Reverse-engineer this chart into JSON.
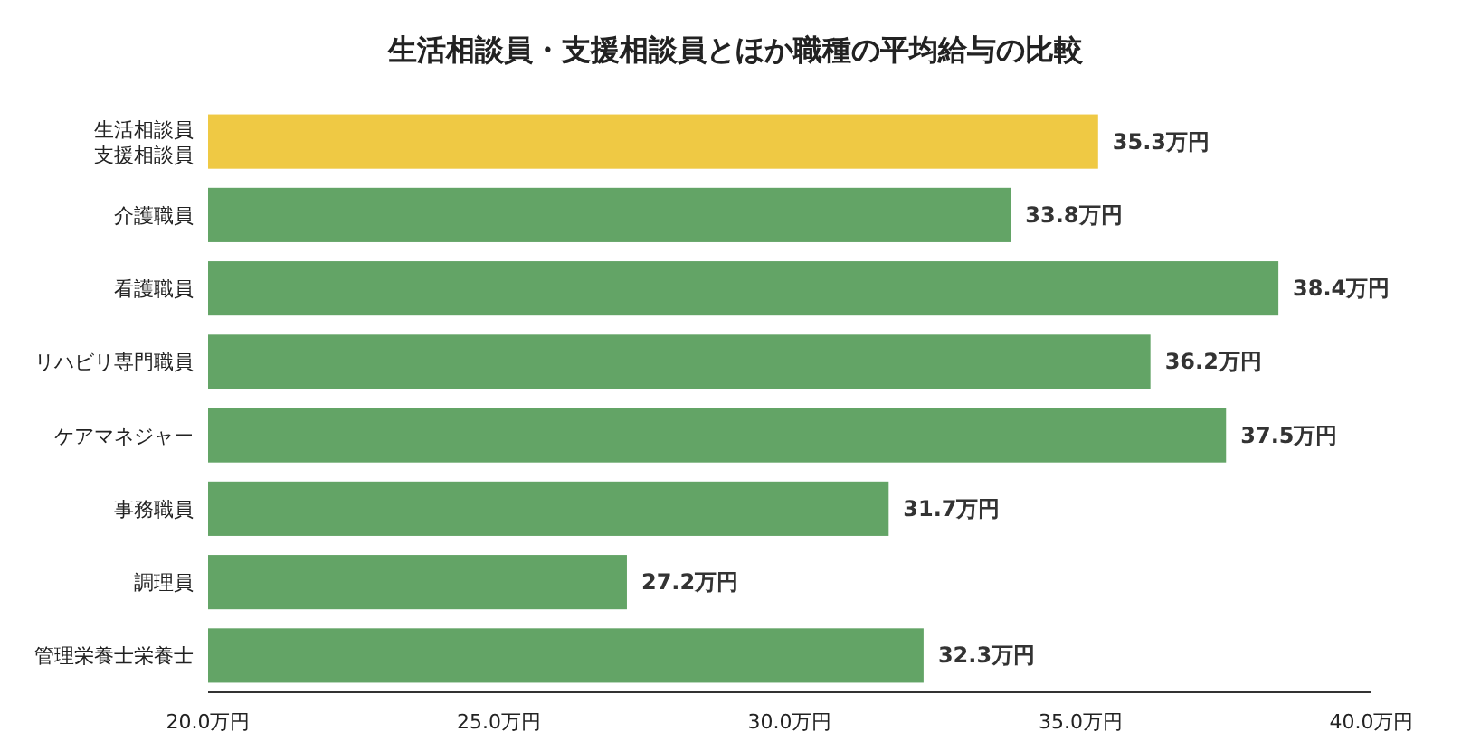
{
  "chart_data": {
    "type": "bar",
    "orientation": "horizontal",
    "title": "生活相談員・支援相談員とほか職種の平均給与の比較",
    "categories": [
      "生活相談員支援相談員",
      "介護職員",
      "看護職員",
      "リハビリ専門職員",
      "ケアマネジャー",
      "事務職員",
      "調理員",
      "管理栄養士栄養士"
    ],
    "values": [
      35.3,
      33.8,
      38.4,
      36.2,
      37.5,
      31.7,
      27.2,
      32.3
    ],
    "colors": [
      "#efc944",
      "#63a466",
      "#63a466",
      "#63a466",
      "#63a466",
      "#63a466",
      "#63a466",
      "#63a466"
    ],
    "value_labels": [
      "35.3万円",
      "33.8万円",
      "38.4万円",
      "36.2万円",
      "37.5万円",
      "31.7万円",
      "27.2万円",
      "32.3万円"
    ],
    "xlim": [
      20,
      40
    ],
    "xticks": [
      {
        "value": 20,
        "label": "20.0万円"
      },
      {
        "value": 25,
        "label": "25.0万円"
      },
      {
        "value": 30,
        "label": "30.0万円"
      },
      {
        "value": 35,
        "label": "35.0万円"
      },
      {
        "value": 40,
        "label": "40.0万円"
      }
    ],
    "grid": false
  }
}
